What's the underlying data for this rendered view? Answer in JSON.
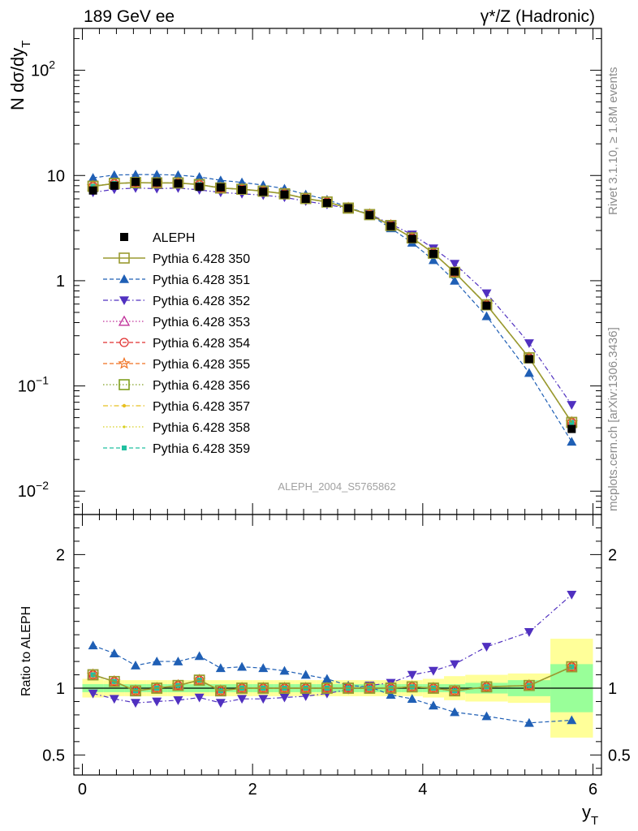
{
  "header": {
    "left_title": "189 GeV ee",
    "right_title": "γ*/Z (Hadronic)"
  },
  "side_labels": {
    "rivet": "Rivet 3.1.10, ≥ 1.8M events",
    "mcplots": "mcplots.cern.ch [arXiv:1306.3436]"
  },
  "watermark": "ALEPH_2004_S5765862",
  "chart_data": [
    {
      "type": "line",
      "panel": "main",
      "ylabel": "N dσ/dy_T",
      "yscale": "log",
      "ylim": [
        0.006,
        250
      ],
      "xlim": [
        -0.1,
        6.1
      ],
      "y_ticks": [
        {
          "v": 0.01,
          "base": "10",
          "exp": "−2"
        },
        {
          "v": 0.1,
          "base": "10",
          "exp": "−1"
        },
        {
          "v": 1,
          "base": "1",
          "exp": ""
        },
        {
          "v": 10,
          "base": "10",
          "exp": ""
        },
        {
          "v": 100,
          "base": "10",
          "exp": "2"
        }
      ],
      "x": [
        0.125,
        0.375,
        0.625,
        0.875,
        1.125,
        1.375,
        1.625,
        1.875,
        2.125,
        2.375,
        2.625,
        2.875,
        3.125,
        3.375,
        3.625,
        3.875,
        4.125,
        4.375,
        4.75,
        5.25,
        5.75
      ],
      "series": [
        {
          "name": "ALEPH",
          "key": "data",
          "color": "#000000",
          "marker": "square-filled",
          "dash": "none",
          "values": [
            7.2,
            8.0,
            8.7,
            8.6,
            8.4,
            7.8,
            7.7,
            7.3,
            7.0,
            6.6,
            6.0,
            5.5,
            4.9,
            4.2,
            3.3,
            2.5,
            1.8,
            1.22,
            0.58,
            0.18,
            0.039
          ]
        },
        {
          "name": "Pythia 6.428 350",
          "key": "350",
          "color": "#9a9a30",
          "marker": "square-open",
          "dash": "solid",
          "values": [
            7.9,
            8.4,
            8.55,
            8.5,
            8.5,
            8.2,
            7.6,
            7.4,
            7.1,
            6.7,
            6.05,
            5.6,
            4.9,
            4.25,
            3.35,
            2.55,
            1.83,
            1.2,
            0.59,
            0.185,
            0.045
          ]
        },
        {
          "name": "Pythia 6.428 351",
          "key": "351",
          "color": "#1f5fb5",
          "marker": "triangle-up",
          "dash": "dashed",
          "values": [
            9.5,
            10.1,
            10.2,
            10.2,
            10.1,
            9.7,
            9.0,
            8.6,
            8.1,
            7.5,
            6.6,
            5.9,
            5.0,
            4.25,
            3.15,
            2.3,
            1.57,
            1.0,
            0.46,
            0.133,
            0.0295
          ]
        },
        {
          "name": "Pythia 6.428 352",
          "key": "352",
          "color": "#5030c0",
          "marker": "triangle-down",
          "dash": "dashdot",
          "values": [
            6.9,
            7.4,
            7.6,
            7.5,
            7.6,
            7.3,
            6.9,
            6.7,
            6.5,
            6.2,
            5.7,
            5.3,
            4.85,
            4.3,
            3.45,
            2.75,
            2.03,
            1.45,
            0.76,
            0.255,
            0.066
          ]
        },
        {
          "name": "Pythia 6.428 353",
          "key": "353",
          "color": "#c0309a",
          "marker": "triangle-open",
          "dash": "dotted",
          "values": [
            7.9,
            8.4,
            8.55,
            8.5,
            8.5,
            8.2,
            7.6,
            7.4,
            7.1,
            6.7,
            6.05,
            5.6,
            4.9,
            4.25,
            3.35,
            2.55,
            1.83,
            1.2,
            0.59,
            0.185,
            0.045
          ]
        },
        {
          "name": "Pythia 6.428 354",
          "key": "354",
          "color": "#e03030",
          "marker": "circle-open",
          "dash": "dashed",
          "values": [
            7.9,
            8.4,
            8.55,
            8.5,
            8.5,
            8.2,
            7.6,
            7.4,
            7.1,
            6.7,
            6.05,
            5.6,
            4.9,
            4.25,
            3.35,
            2.55,
            1.83,
            1.2,
            0.59,
            0.185,
            0.045
          ]
        },
        {
          "name": "Pythia 6.428 355",
          "key": "355",
          "color": "#f07020",
          "marker": "star-open",
          "dash": "dashed",
          "values": [
            7.9,
            8.4,
            8.55,
            8.5,
            8.5,
            8.2,
            7.6,
            7.4,
            7.1,
            6.7,
            6.05,
            5.6,
            4.9,
            4.25,
            3.35,
            2.55,
            1.83,
            1.2,
            0.59,
            0.185,
            0.045
          ]
        },
        {
          "name": "Pythia 6.428 356",
          "key": "356",
          "color": "#80a020",
          "marker": "square-open",
          "dash": "dotted",
          "values": [
            7.9,
            8.4,
            8.55,
            8.5,
            8.5,
            8.2,
            7.6,
            7.4,
            7.1,
            6.7,
            6.05,
            5.6,
            4.9,
            4.25,
            3.35,
            2.55,
            1.83,
            1.2,
            0.59,
            0.185,
            0.045
          ]
        },
        {
          "name": "Pythia 6.428 357",
          "key": "357",
          "color": "#e8c020",
          "marker": "dot-small",
          "dash": "dashdot",
          "values": [
            7.9,
            8.4,
            8.55,
            8.5,
            8.5,
            8.2,
            7.6,
            7.4,
            7.1,
            6.7,
            6.05,
            5.6,
            4.9,
            4.25,
            3.35,
            2.55,
            1.83,
            1.2,
            0.59,
            0.185,
            0.045
          ]
        },
        {
          "name": "Pythia 6.428 358",
          "key": "358",
          "color": "#d8d020",
          "marker": "dot-tiny",
          "dash": "dotted",
          "values": [
            7.9,
            8.4,
            8.55,
            8.5,
            8.5,
            8.2,
            7.6,
            7.4,
            7.1,
            6.7,
            6.05,
            5.6,
            4.9,
            4.25,
            3.35,
            2.55,
            1.83,
            1.2,
            0.59,
            0.185,
            0.045
          ]
        },
        {
          "name": "Pythia 6.428 359",
          "key": "359",
          "color": "#20c0a0",
          "marker": "square-filled-small",
          "dash": "dashed",
          "values": [
            7.9,
            8.4,
            8.55,
            8.5,
            8.5,
            8.2,
            7.6,
            7.4,
            7.1,
            6.7,
            6.05,
            5.6,
            4.9,
            4.25,
            3.35,
            2.55,
            1.83,
            1.2,
            0.59,
            0.185,
            0.045
          ]
        }
      ]
    },
    {
      "type": "line",
      "panel": "ratio",
      "ylabel": "Ratio to ALEPH",
      "xlabel": "y_T",
      "xlim": [
        -0.1,
        6.1
      ],
      "ylim": [
        0.35,
        2.3
      ],
      "x_ticks": [
        0,
        2,
        4,
        6
      ],
      "y_ticks": [
        0.5,
        1,
        2
      ],
      "bands": {
        "x_edges": [
          0.0,
          0.25,
          0.5,
          0.75,
          1.0,
          1.25,
          1.5,
          1.75,
          2.0,
          2.25,
          2.5,
          2.75,
          3.0,
          3.25,
          3.5,
          3.75,
          4.0,
          4.25,
          4.5,
          5.0,
          5.5,
          6.0
        ],
        "stat": [
          0.03,
          0.03,
          0.03,
          0.03,
          0.03,
          0.03,
          0.03,
          0.03,
          0.03,
          0.03,
          0.03,
          0.03,
          0.03,
          0.03,
          0.03,
          0.03,
          0.03,
          0.03,
          0.04,
          0.06,
          0.18
        ],
        "total": [
          0.07,
          0.06,
          0.06,
          0.06,
          0.06,
          0.06,
          0.06,
          0.06,
          0.06,
          0.06,
          0.06,
          0.06,
          0.06,
          0.06,
          0.06,
          0.06,
          0.07,
          0.09,
          0.1,
          0.11,
          0.37
        ],
        "stat_color": "#99ff99",
        "total_color": "#ffff99"
      },
      "series": [
        {
          "key": "350",
          "values": [
            1.1,
            1.05,
            0.98,
            1.0,
            1.02,
            1.06,
            0.98,
            1.0,
            1.0,
            1.0,
            1.0,
            1.0,
            1.0,
            1.0,
            1.0,
            1.01,
            1.0,
            0.98,
            1.01,
            1.02,
            1.16
          ]
        },
        {
          "key": "351",
          "values": [
            1.32,
            1.26,
            1.17,
            1.2,
            1.2,
            1.24,
            1.15,
            1.16,
            1.15,
            1.13,
            1.1,
            1.07,
            1.02,
            1.01,
            0.95,
            0.92,
            0.87,
            0.82,
            0.79,
            0.74,
            0.76
          ]
        },
        {
          "key": "352",
          "values": [
            0.96,
            0.92,
            0.89,
            0.9,
            0.91,
            0.93,
            0.89,
            0.92,
            0.92,
            0.93,
            0.94,
            0.96,
            0.99,
            1.02,
            1.04,
            1.1,
            1.13,
            1.18,
            1.31,
            1.42,
            1.7
          ]
        },
        {
          "key": "353",
          "values": [
            1.1,
            1.05,
            0.98,
            1.0,
            1.02,
            1.06,
            0.98,
            1.0,
            1.0,
            1.0,
            1.0,
            1.0,
            1.0,
            1.0,
            1.0,
            1.01,
            1.0,
            0.98,
            1.01,
            1.02,
            1.16
          ]
        },
        {
          "key": "354",
          "values": [
            1.1,
            1.05,
            0.98,
            1.0,
            1.02,
            1.06,
            0.98,
            1.0,
            1.0,
            1.0,
            1.0,
            1.0,
            1.0,
            1.0,
            1.0,
            1.01,
            1.0,
            0.98,
            1.01,
            1.02,
            1.16
          ]
        },
        {
          "key": "355",
          "values": [
            1.1,
            1.05,
            0.98,
            1.0,
            1.02,
            1.06,
            0.98,
            1.0,
            1.0,
            1.0,
            1.0,
            1.0,
            1.0,
            1.0,
            1.0,
            1.01,
            1.0,
            0.98,
            1.01,
            1.02,
            1.16
          ]
        },
        {
          "key": "356",
          "values": [
            1.1,
            1.05,
            0.98,
            1.0,
            1.02,
            1.06,
            0.98,
            1.0,
            1.0,
            1.0,
            1.0,
            1.0,
            1.0,
            1.0,
            1.0,
            1.01,
            1.0,
            0.98,
            1.01,
            1.02,
            1.16
          ]
        },
        {
          "key": "357",
          "values": [
            1.1,
            1.05,
            0.98,
            1.0,
            1.02,
            1.06,
            0.98,
            1.0,
            1.0,
            1.0,
            1.0,
            1.0,
            1.0,
            1.0,
            1.0,
            1.01,
            1.0,
            0.98,
            1.01,
            1.02,
            1.16
          ]
        },
        {
          "key": "358",
          "values": [
            1.1,
            1.05,
            0.98,
            1.0,
            1.02,
            1.06,
            0.98,
            1.0,
            1.0,
            1.0,
            1.0,
            1.0,
            1.0,
            1.0,
            1.0,
            1.01,
            1.0,
            0.98,
            1.01,
            1.02,
            1.16
          ]
        },
        {
          "key": "359",
          "values": [
            1.1,
            1.05,
            0.98,
            1.0,
            1.02,
            1.06,
            0.98,
            1.0,
            1.0,
            1.0,
            1.0,
            1.0,
            1.0,
            1.0,
            1.0,
            1.01,
            1.0,
            0.98,
            1.01,
            1.02,
            1.16
          ]
        }
      ]
    }
  ]
}
